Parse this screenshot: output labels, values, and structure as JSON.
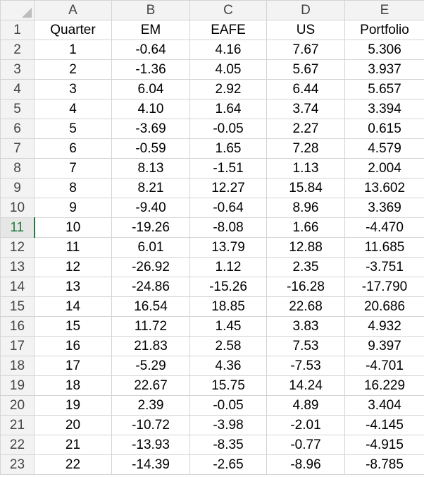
{
  "columns": [
    "A",
    "B",
    "C",
    "D",
    "E"
  ],
  "active_row": "11",
  "header_row": {
    "row": "1",
    "cells": [
      "Quarter",
      "EM",
      "EAFE",
      "US",
      "Portfolio"
    ]
  },
  "rows": [
    {
      "row": "2",
      "cells": [
        "1",
        "-0.64",
        "4.16",
        "7.67",
        "5.306"
      ]
    },
    {
      "row": "3",
      "cells": [
        "2",
        "-1.36",
        "4.05",
        "5.67",
        "3.937"
      ]
    },
    {
      "row": "4",
      "cells": [
        "3",
        "6.04",
        "2.92",
        "6.44",
        "5.657"
      ]
    },
    {
      "row": "5",
      "cells": [
        "4",
        "4.10",
        "1.64",
        "3.74",
        "3.394"
      ]
    },
    {
      "row": "6",
      "cells": [
        "5",
        "-3.69",
        "-0.05",
        "2.27",
        "0.615"
      ]
    },
    {
      "row": "7",
      "cells": [
        "6",
        "-0.59",
        "1.65",
        "7.28",
        "4.579"
      ]
    },
    {
      "row": "8",
      "cells": [
        "7",
        "8.13",
        "-1.51",
        "1.13",
        "2.004"
      ]
    },
    {
      "row": "9",
      "cells": [
        "8",
        "8.21",
        "12.27",
        "15.84",
        "13.602"
      ]
    },
    {
      "row": "10",
      "cells": [
        "9",
        "-9.40",
        "-0.64",
        "8.96",
        "3.369"
      ]
    },
    {
      "row": "11",
      "cells": [
        "10",
        "-19.26",
        "-8.08",
        "1.66",
        "-4.470"
      ]
    },
    {
      "row": "12",
      "cells": [
        "11",
        "6.01",
        "13.79",
        "12.88",
        "11.685"
      ]
    },
    {
      "row": "13",
      "cells": [
        "12",
        "-26.92",
        "1.12",
        "2.35",
        "-3.751"
      ]
    },
    {
      "row": "14",
      "cells": [
        "13",
        "-24.86",
        "-15.26",
        "-16.28",
        "-17.790"
      ]
    },
    {
      "row": "15",
      "cells": [
        "14",
        "16.54",
        "18.85",
        "22.68",
        "20.686"
      ]
    },
    {
      "row": "16",
      "cells": [
        "15",
        "11.72",
        "1.45",
        "3.83",
        "4.932"
      ]
    },
    {
      "row": "17",
      "cells": [
        "16",
        "21.83",
        "2.58",
        "7.53",
        "9.397"
      ]
    },
    {
      "row": "18",
      "cells": [
        "17",
        "-5.29",
        "4.36",
        "-7.53",
        "-4.701"
      ]
    },
    {
      "row": "19",
      "cells": [
        "18",
        "22.67",
        "15.75",
        "14.24",
        "16.229"
      ]
    },
    {
      "row": "20",
      "cells": [
        "19",
        "2.39",
        "-0.05",
        "4.89",
        "3.404"
      ]
    },
    {
      "row": "21",
      "cells": [
        "20",
        "-10.72",
        "-3.98",
        "-2.01",
        "-4.145"
      ]
    },
    {
      "row": "22",
      "cells": [
        "21",
        "-13.93",
        "-8.35",
        "-0.77",
        "-4.915"
      ]
    },
    {
      "row": "23",
      "cells": [
        "22",
        "-14.39",
        "-2.65",
        "-8.96",
        "-8.785"
      ]
    }
  ]
}
